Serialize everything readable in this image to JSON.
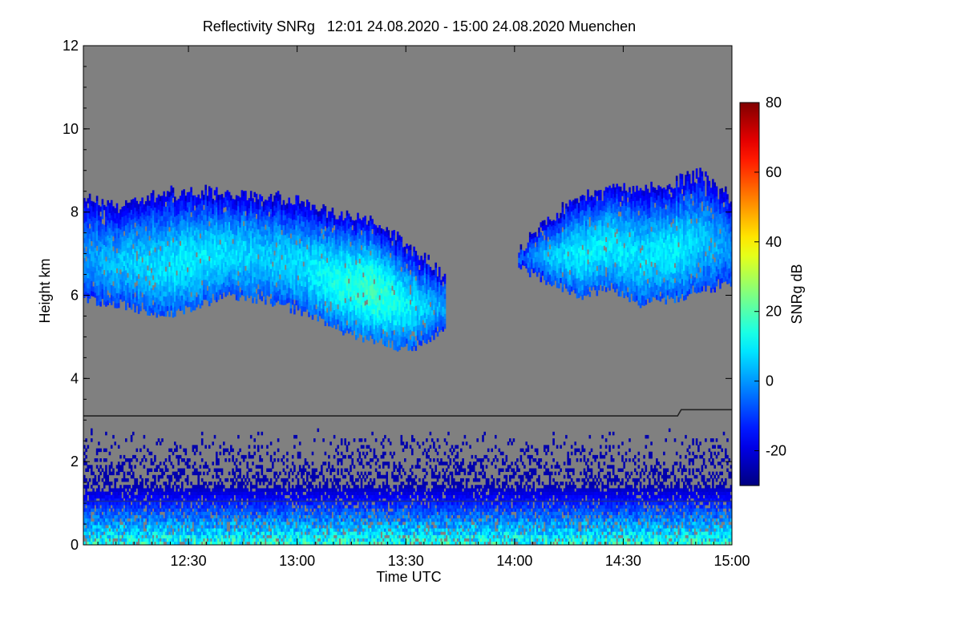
{
  "chart_data": {
    "type": "heatmap",
    "title": "Reflectivity SNRg   12:01 24.08.2020 - 15:00 24.08.2020 Muenchen",
    "xlabel": "Time UTC",
    "ylabel": "Height km",
    "xlim_minutes_utc": [
      721,
      900
    ],
    "ylim_km": [
      0,
      12
    ],
    "x_ticks": [
      {
        "minute": 750,
        "label": "12:30"
      },
      {
        "minute": 780,
        "label": "13:00"
      },
      {
        "minute": 810,
        "label": "13:30"
      },
      {
        "minute": 840,
        "label": "14:00"
      },
      {
        "minute": 870,
        "label": "14:30"
      },
      {
        "minute": 900,
        "label": "15:00"
      }
    ],
    "y_ticks": [
      {
        "value": 0,
        "label": "0"
      },
      {
        "value": 2,
        "label": "2"
      },
      {
        "value": 4,
        "label": "4"
      },
      {
        "value": 6,
        "label": "6"
      },
      {
        "value": 8,
        "label": "8"
      },
      {
        "value": 10,
        "label": "10"
      },
      {
        "value": 12,
        "label": "12"
      }
    ],
    "colorbar": {
      "label": "SNRg dB",
      "range": [
        -30,
        80
      ],
      "ticks": [
        {
          "value": -20,
          "label": "-20"
        },
        {
          "value": 0,
          "label": "0"
        },
        {
          "value": 20,
          "label": "20"
        },
        {
          "value": 40,
          "label": "40"
        },
        {
          "value": 60,
          "label": "60"
        },
        {
          "value": 80,
          "label": "80"
        }
      ]
    },
    "background_color": "#808080",
    "reference_lines": [
      {
        "name": "upper-line",
        "points": [
          [
            721,
            3.1
          ],
          [
            885,
            3.1
          ],
          [
            886,
            3.25
          ],
          [
            900,
            3.25
          ]
        ],
        "color": "#222222"
      },
      {
        "name": "lower-line",
        "points": [
          [
            721,
            1.05
          ],
          [
            900,
            1.05
          ]
        ],
        "color": "#1a2a9a"
      }
    ],
    "cloud_layer": {
      "description_segments": [
        {
          "t_start": 721,
          "t_end": 821,
          "base_km": [
            5.9,
            5.8,
            5.5,
            5.7,
            6.0,
            5.9,
            5.6,
            5.2,
            4.9,
            4.7,
            5.2
          ],
          "top_km": [
            8.3,
            8.1,
            8.4,
            8.4,
            8.4,
            8.3,
            8.2,
            7.9,
            7.7,
            7.1,
            6.4
          ],
          "peak_snr_db": [
            0,
            5,
            8,
            10,
            8,
            6,
            8,
            14,
            18,
            10,
            0
          ]
        },
        {
          "t_start": 841,
          "t_end": 900,
          "base_km": [
            6.7,
            6.3,
            6.0,
            6.2,
            5.8,
            5.9,
            6.1,
            6.3
          ],
          "top_km": [
            7.0,
            7.8,
            8.3,
            8.6,
            8.5,
            8.6,
            8.9,
            8.2
          ],
          "peak_snr_db": [
            -5,
            5,
            10,
            10,
            8,
            10,
            5,
            0
          ]
        }
      ]
    },
    "boundary_layer": {
      "top_km": 2.8,
      "peak_snr_db": 25,
      "near_surface_km": 0.5
    }
  }
}
